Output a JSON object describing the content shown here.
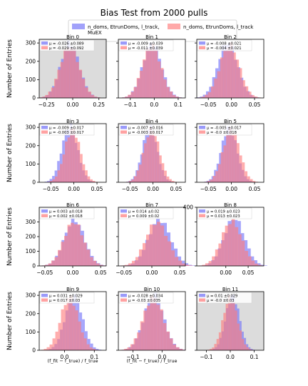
{
  "figure": {
    "title": "Bias Test from 2000 pulls",
    "legend": {
      "placement": "top-center",
      "entries": [
        {
          "label_lines": [
            "n_doms, EtrunDoms, l_track,",
            "MuEX"
          ],
          "color": "#6f6ff8"
        },
        {
          "label_lines": [
            "n_doms, EtrunDoms, l_track"
          ],
          "color": "#ff7b7b"
        }
      ]
    },
    "ylabel": "Number of Entries",
    "xlabel": "(f_fit − f_true) / f_true"
  },
  "chart_data": [
    {
      "type": "bar",
      "title": "Bin 0",
      "xlim": [
        -0.32,
        0.32
      ],
      "ylim": [
        0,
        320
      ],
      "xticks": [
        -0.25,
        0,
        0.25
      ],
      "xtick_labels": [
        "−0.25",
        "0.00",
        "0.25"
      ],
      "yticks": [
        0,
        100,
        200,
        300
      ],
      "ytick_labels": [
        "0",
        "100",
        "200",
        "300"
      ],
      "shaded": true,
      "series": [
        {
          "name": "μ = -0.026 ±0.089",
          "mu": -0.026,
          "sigma": 0.089,
          "peak": 300
        },
        {
          "name": "μ = -0.029 ±0.092",
          "mu": -0.029,
          "sigma": 0.092,
          "peak": 285
        }
      ]
    },
    {
      "type": "bar",
      "title": "Bin 1",
      "xlim": [
        -0.15,
        0.13
      ],
      "ylim": [
        0,
        320
      ],
      "xticks": [
        -0.1,
        0,
        0.1
      ],
      "xtick_labels": [
        "−0.1",
        "0.0",
        "0.1"
      ],
      "yticks": [
        0,
        100,
        200,
        300
      ],
      "ytick_labels": [
        "",
        "",
        "",
        ""
      ],
      "shaded": false,
      "series": [
        {
          "name": "μ = -0.009 ±0.039",
          "mu": -0.009,
          "sigma": 0.039,
          "peak": 300
        },
        {
          "name": "μ = -0.011 ±0.039",
          "mu": -0.011,
          "sigma": 0.039,
          "peak": 290
        }
      ]
    },
    {
      "type": "bar",
      "title": "Bin 2",
      "xlim": [
        -0.075,
        0.07
      ],
      "ylim": [
        0,
        320
      ],
      "xticks": [
        -0.05,
        0,
        0.05
      ],
      "xtick_labels": [
        "−0.05",
        "0.00",
        "0.05"
      ],
      "yticks": [
        0,
        100,
        200,
        300
      ],
      "ytick_labels": [
        "",
        "",
        "",
        ""
      ],
      "shaded": false,
      "series": [
        {
          "name": "μ = -0.008 ±0.021",
          "mu": -0.008,
          "sigma": 0.021,
          "peak": 305
        },
        {
          "name": "μ = -0.004 ±0.021",
          "mu": -0.004,
          "sigma": 0.021,
          "peak": 290
        }
      ]
    },
    {
      "type": "bar",
      "title": "Bin 3",
      "xlim": [
        -0.075,
        0.07
      ],
      "ylim": [
        0,
        320
      ],
      "xticks": [
        -0.05,
        0,
        0.05
      ],
      "xtick_labels": [
        "−0.05",
        "0.00",
        "0.05"
      ],
      "yticks": [
        0,
        100,
        200,
        300
      ],
      "ytick_labels": [
        "0",
        "100",
        "200",
        "300"
      ],
      "shaded": false,
      "series": [
        {
          "name": "μ = -0.009 ±0.017",
          "mu": -0.009,
          "sigma": 0.017,
          "peak": 310
        },
        {
          "name": "μ = -0.003 ±0.017",
          "mu": -0.003,
          "sigma": 0.017,
          "peak": 290
        }
      ]
    },
    {
      "type": "bar",
      "title": "Bin 4",
      "xlim": [
        -0.075,
        0.07
      ],
      "ylim": [
        0,
        320
      ],
      "xticks": [
        -0.05,
        0,
        0.05
      ],
      "xtick_labels": [
        "−0.05",
        "0.00",
        "0.05"
      ],
      "yticks": [
        0,
        100,
        200,
        300
      ],
      "ytick_labels": [
        "",
        "",
        "",
        ""
      ],
      "shaded": false,
      "series": [
        {
          "name": "μ = -0.007 ±0.016",
          "mu": -0.007,
          "sigma": 0.016,
          "peak": 300
        },
        {
          "name": "μ = -0.003 ±0.017",
          "mu": -0.003,
          "sigma": 0.017,
          "peak": 290
        }
      ]
    },
    {
      "type": "bar",
      "title": "Bin 5",
      "xlim": [
        -0.075,
        0.07
      ],
      "ylim": [
        0,
        320
      ],
      "xticks": [
        -0.05,
        0,
        0.05
      ],
      "xtick_labels": [
        "−0.05",
        "0.00",
        "0.05"
      ],
      "yticks": [
        0,
        100,
        200,
        300
      ],
      "ytick_labels": [
        "",
        "",
        "",
        ""
      ],
      "shaded": false,
      "series": [
        {
          "name": "μ = -0.005 ±0.017",
          "mu": -0.005,
          "sigma": 0.017,
          "peak": 300
        },
        {
          "name": "μ = -0.0 ±0.018",
          "mu": 0.0,
          "sigma": 0.018,
          "peak": 290
        }
      ]
    },
    {
      "type": "bar",
      "title": "Bin 6",
      "xlim": [
        -0.06,
        0.06
      ],
      "ylim": [
        0,
        400
      ],
      "xticks": [
        -0.05,
        0,
        0.05
      ],
      "xtick_labels": [
        "−0.05",
        "0.00",
        "0.05"
      ],
      "yticks": [
        0,
        100,
        200,
        300
      ],
      "ytick_labels": [
        "0",
        "100",
        "200",
        "300"
      ],
      "shaded": false,
      "series": [
        {
          "name": "μ = 0.003 ±0.018",
          "mu": 0.003,
          "sigma": 0.018,
          "peak": 315
        },
        {
          "name": "μ = 0.002 ±0.018",
          "mu": 0.002,
          "sigma": 0.018,
          "peak": 300
        }
      ]
    },
    {
      "type": "bar",
      "title": "Bin 7",
      "xlim": [
        -0.06,
        0.06
      ],
      "ylim": [
        0,
        400
      ],
      "xticks": [
        -0.05,
        0,
        0.05
      ],
      "xtick_labels": [
        "−0.05",
        "0.00",
        "0.05"
      ],
      "yticks": [
        0,
        100,
        200,
        300
      ],
      "ytick_labels": [
        "",
        "",
        "",
        ""
      ],
      "shaded": false,
      "series": [
        {
          "name": "μ = 0.014 ±0.02",
          "mu": 0.014,
          "sigma": 0.02,
          "peak": 315
        },
        {
          "name": "μ = 0.009 ±0.02",
          "mu": 0.009,
          "sigma": 0.02,
          "peak": 300
        }
      ]
    },
    {
      "type": "bar",
      "title": "Bin 8",
      "xlim": [
        -0.065,
        0.085
      ],
      "ylim": [
        0,
        400
      ],
      "xticks": [
        0,
        0.05
      ],
      "xtick_labels": [
        "0.00",
        "0.05"
      ],
      "yticks": [
        0,
        100,
        200,
        300,
        400
      ],
      "ytick_labels": [
        "",
        "",
        "",
        "",
        "400"
      ],
      "shaded": false,
      "series": [
        {
          "name": "μ = 0.019 ±0.023",
          "mu": 0.019,
          "sigma": 0.023,
          "peak": 325
        },
        {
          "name": "μ = 0.013 ±0.023",
          "mu": 0.013,
          "sigma": 0.023,
          "peak": 305
        }
      ]
    },
    {
      "type": "bar",
      "title": "Bin 9",
      "xlim": [
        -0.085,
        0.14
      ],
      "ylim": [
        0,
        320
      ],
      "xticks": [
        0,
        0.1
      ],
      "xtick_labels": [
        "0.0",
        "0.1"
      ],
      "yticks": [
        0,
        100,
        200,
        300
      ],
      "ytick_labels": [
        "0",
        "100",
        "200",
        "300"
      ],
      "shaded": false,
      "series": [
        {
          "name": "μ = 0.031 ±0.029",
          "mu": 0.031,
          "sigma": 0.029,
          "peak": 300
        },
        {
          "name": "μ = 0.017 ±0.03",
          "mu": 0.017,
          "sigma": 0.03,
          "peak": 290
        }
      ]
    },
    {
      "type": "bar",
      "title": "Bin 10",
      "xlim": [
        -0.15,
        0.08
      ],
      "ylim": [
        0,
        320
      ],
      "xticks": [
        -0.1,
        0
      ],
      "xtick_labels": [
        "−0.1",
        "0.0"
      ],
      "yticks": [
        0,
        100,
        200,
        300
      ],
      "ytick_labels": [
        "",
        "",
        "",
        ""
      ],
      "shaded": false,
      "series": [
        {
          "name": "μ = -0.028 ±0.034",
          "mu": -0.028,
          "sigma": 0.034,
          "peak": 300
        },
        {
          "name": "μ = -0.03 ±0.035",
          "mu": -0.03,
          "sigma": 0.035,
          "peak": 290
        }
      ]
    },
    {
      "type": "bar",
      "title": "Bin 11",
      "xlim": [
        -0.14,
        0.14
      ],
      "ylim": [
        0,
        320
      ],
      "xticks": [
        -0.1,
        0,
        0.1
      ],
      "xtick_labels": [
        "−0.1",
        "0.0",
        "0.1"
      ],
      "yticks": [
        0,
        100,
        200,
        300
      ],
      "ytick_labels": [
        "",
        "",
        "",
        ""
      ],
      "shaded": true,
      "series": [
        {
          "name": "μ = 0.01 ±0.029",
          "mu": 0.01,
          "sigma": 0.029,
          "peak": 300
        },
        {
          "name": "μ = -0.0 ±0.03",
          "mu": 0.0,
          "sigma": 0.03,
          "peak": 290
        }
      ]
    }
  ]
}
